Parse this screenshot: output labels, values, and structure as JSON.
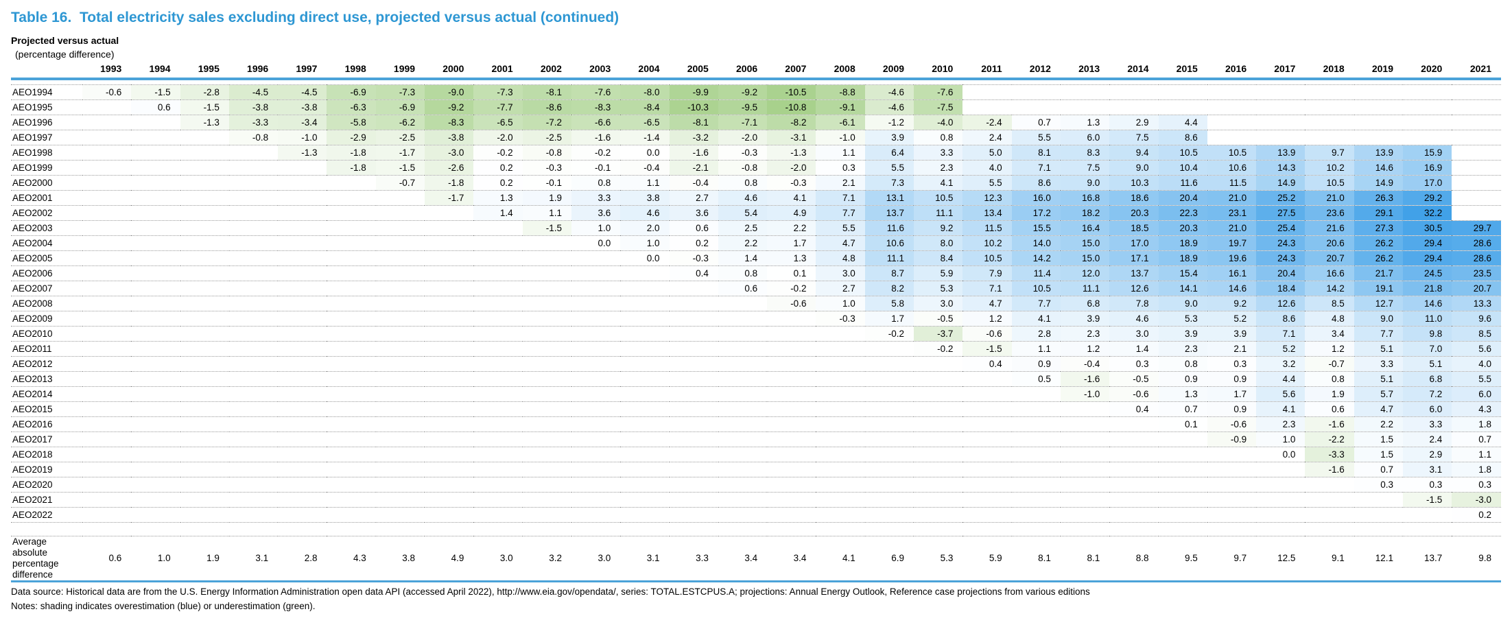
{
  "page": {
    "title": "Table 16.  Total electricity sales excluding direct use, projected versus actual (continued)",
    "subtitle": "Projected versus actual",
    "subtitle_unit": "(percentage difference)"
  },
  "table": {
    "columns": [
      "1993",
      "1994",
      "1995",
      "1996",
      "1997",
      "1998",
      "1999",
      "2000",
      "2001",
      "2002",
      "2003",
      "2004",
      "2005",
      "2006",
      "2007",
      "2008",
      "2009",
      "2010",
      "2011",
      "2012",
      "2013",
      "2014",
      "2015",
      "2016",
      "2017",
      "2018",
      "2019",
      "2020",
      "2021"
    ],
    "first_column_year": 1993,
    "rows": [
      {
        "label": "AEO1994",
        "start_year": 1993,
        "values": [
          -0.6,
          -1.5,
          -2.8,
          -4.5,
          -4.5,
          -6.9,
          -7.3,
          -9.0,
          -7.3,
          -8.1,
          -7.6,
          -8.0,
          -9.9,
          -9.2,
          -10.5,
          -8.8,
          -4.6,
          -7.6
        ]
      },
      {
        "label": "AEO1995",
        "start_year": 1994,
        "values": [
          0.6,
          -1.5,
          -3.8,
          -3.8,
          -6.3,
          -6.9,
          -9.2,
          -7.7,
          -8.6,
          -8.3,
          -8.4,
          -10.3,
          -9.5,
          -10.8,
          -9.1,
          -4.6,
          -7.5
        ]
      },
      {
        "label": "AEO1996",
        "start_year": 1995,
        "values": [
          -1.3,
          -3.3,
          -3.4,
          -5.8,
          -6.2,
          -8.3,
          -6.5,
          -7.2,
          -6.6,
          -6.5,
          -8.1,
          -7.1,
          -8.2,
          -6.1,
          -1.2,
          -4.0,
          -2.4,
          0.7,
          1.3,
          2.9,
          4.4
        ]
      },
      {
        "label": "AEO1997",
        "start_year": 1996,
        "values": [
          -0.8,
          -1.0,
          -2.9,
          -2.5,
          -3.8,
          -2.0,
          -2.5,
          -1.6,
          -1.4,
          -3.2,
          -2.0,
          -3.1,
          -1.0,
          3.9,
          0.8,
          2.4,
          5.5,
          6.0,
          7.5,
          8.6
        ]
      },
      {
        "label": "AEO1998",
        "start_year": 1997,
        "values": [
          -1.3,
          -1.8,
          -1.7,
          -3.0,
          -0.2,
          -0.8,
          -0.2,
          0.0,
          -1.6,
          -0.3,
          -1.3,
          1.1,
          6.4,
          3.3,
          5.0,
          8.1,
          8.3,
          9.4,
          10.5,
          10.5,
          13.9,
          9.7,
          13.9,
          15.9
        ]
      },
      {
        "label": "AEO1999",
        "start_year": 1998,
        "values": [
          -1.8,
          -1.5,
          -2.6,
          0.2,
          -0.3,
          -0.1,
          -0.4,
          -2.1,
          -0.8,
          -2.0,
          0.3,
          5.5,
          2.3,
          4.0,
          7.1,
          7.5,
          9.0,
          10.4,
          10.6,
          14.3,
          10.2,
          14.6,
          16.9
        ]
      },
      {
        "label": "AEO2000",
        "start_year": 1999,
        "values": [
          -0.7,
          -1.8,
          0.2,
          -0.1,
          0.8,
          1.1,
          -0.4,
          0.8,
          -0.3,
          2.1,
          7.3,
          4.1,
          5.5,
          8.6,
          9.0,
          10.3,
          11.6,
          11.5,
          14.9,
          10.5,
          14.9,
          17.0
        ]
      },
      {
        "label": "AEO2001",
        "start_year": 2000,
        "values": [
          -1.7,
          1.3,
          1.9,
          3.3,
          3.8,
          2.7,
          4.6,
          4.1,
          7.1,
          13.1,
          10.5,
          12.3,
          16.0,
          16.8,
          18.6,
          20.4,
          21.0,
          25.2,
          21.0,
          26.3,
          29.2
        ]
      },
      {
        "label": "AEO2002",
        "start_year": 2001,
        "values": [
          1.4,
          1.1,
          3.6,
          4.6,
          3.6,
          5.4,
          4.9,
          7.7,
          13.7,
          11.1,
          13.4,
          17.2,
          18.2,
          20.3,
          22.3,
          23.1,
          27.5,
          23.6,
          29.1,
          32.2
        ]
      },
      {
        "label": "AEO2003",
        "start_year": 2002,
        "values": [
          -1.5,
          1.0,
          2.0,
          0.6,
          2.5,
          2.2,
          5.5,
          11.6,
          9.2,
          11.5,
          15.5,
          16.4,
          18.5,
          20.3,
          21.0,
          25.4,
          21.6,
          27.3,
          30.5,
          29.7
        ]
      },
      {
        "label": "AEO2004",
        "start_year": 2003,
        "values": [
          0.0,
          1.0,
          0.2,
          2.2,
          1.7,
          4.7,
          10.6,
          8.0,
          10.2,
          14.0,
          15.0,
          17.0,
          18.9,
          19.7,
          24.3,
          20.6,
          26.2,
          29.4,
          28.6
        ]
      },
      {
        "label": "AEO2005",
        "start_year": 2004,
        "values": [
          0.0,
          -0.3,
          1.4,
          1.3,
          4.8,
          11.1,
          8.4,
          10.5,
          14.2,
          15.0,
          17.1,
          18.9,
          19.6,
          24.3,
          20.7,
          26.2,
          29.4,
          28.6
        ]
      },
      {
        "label": "AEO2006",
        "start_year": 2005,
        "values": [
          0.4,
          0.8,
          0.1,
          3.0,
          8.7,
          5.9,
          7.9,
          11.4,
          12.0,
          13.7,
          15.4,
          16.1,
          20.4,
          16.6,
          21.7,
          24.5,
          23.5
        ]
      },
      {
        "label": "AEO2007",
        "start_year": 2006,
        "values": [
          0.6,
          -0.2,
          2.7,
          8.2,
          5.3,
          7.1,
          10.5,
          11.1,
          12.6,
          14.1,
          14.6,
          18.4,
          14.2,
          19.1,
          21.8,
          20.7
        ]
      },
      {
        "label": "AEO2008",
        "start_year": 2007,
        "values": [
          -0.6,
          1.0,
          5.8,
          3.0,
          4.7,
          7.7,
          6.8,
          7.8,
          9.0,
          9.2,
          12.6,
          8.5,
          12.7,
          14.6,
          13.3
        ]
      },
      {
        "label": "AEO2009",
        "start_year": 2008,
        "values": [
          -0.3,
          1.7,
          -0.5,
          1.2,
          4.1,
          3.9,
          4.6,
          5.3,
          5.2,
          8.6,
          4.8,
          9.0,
          11.0,
          9.6
        ]
      },
      {
        "label": "AEO2010",
        "start_year": 2009,
        "values": [
          -0.2,
          -3.7,
          -0.6,
          2.8,
          2.3,
          3.0,
          3.9,
          3.9,
          7.1,
          3.4,
          7.7,
          9.8,
          8.5
        ]
      },
      {
        "label": "AEO2011",
        "start_year": 2010,
        "values": [
          -0.2,
          -1.5,
          1.1,
          1.2,
          1.4,
          2.3,
          2.1,
          5.2,
          1.2,
          5.1,
          7.0,
          5.6
        ]
      },
      {
        "label": "AEO2012",
        "start_year": 2011,
        "values": [
          0.4,
          0.9,
          -0.4,
          0.3,
          0.8,
          0.3,
          3.2,
          -0.7,
          3.3,
          5.1,
          4.0
        ]
      },
      {
        "label": "AEO2013",
        "start_year": 2012,
        "values": [
          0.5,
          -1.6,
          -0.5,
          0.9,
          0.9,
          4.4,
          0.8,
          5.1,
          6.8,
          5.5
        ]
      },
      {
        "label": "AEO2014",
        "start_year": 2013,
        "values": [
          -1.0,
          -0.6,
          1.3,
          1.7,
          5.6,
          1.9,
          5.7,
          7.2,
          6.0
        ]
      },
      {
        "label": "AEO2015",
        "start_year": 2014,
        "values": [
          0.4,
          0.7,
          0.9,
          4.1,
          0.6,
          4.7,
          6.0,
          4.3
        ]
      },
      {
        "label": "AEO2016",
        "start_year": 2015,
        "values": [
          0.1,
          -0.6,
          2.3,
          -1.6,
          2.2,
          3.3,
          1.8
        ]
      },
      {
        "label": "AEO2017",
        "start_year": 2016,
        "values": [
          -0.9,
          1.0,
          -2.2,
          1.5,
          2.4,
          0.7
        ]
      },
      {
        "label": "AEO2018",
        "start_year": 2017,
        "values": [
          0.0,
          -3.3,
          1.5,
          2.9,
          1.1
        ]
      },
      {
        "label": "AEO2019",
        "start_year": 2018,
        "values": [
          -1.6,
          0.7,
          3.1,
          1.8
        ]
      },
      {
        "label": "AEO2020",
        "start_year": 2019,
        "values": [
          0.3,
          0.3,
          0.3
        ]
      },
      {
        "label": "AEO2021",
        "start_year": 2020,
        "values": [
          -1.5,
          -3.0
        ]
      },
      {
        "label": "AEO2022",
        "start_year": 2021,
        "values": [
          0.2
        ]
      }
    ],
    "average_row": {
      "label": "Average absolute percentage difference",
      "values": [
        0.6,
        1.0,
        1.9,
        3.1,
        2.8,
        4.3,
        3.8,
        4.9,
        3.0,
        3.2,
        3.0,
        3.1,
        3.3,
        3.4,
        3.4,
        4.1,
        6.9,
        5.3,
        5.9,
        8.1,
        8.1,
        8.8,
        9.5,
        9.7,
        12.5,
        9.1,
        12.1,
        13.7,
        9.8
      ]
    }
  },
  "footer": {
    "data_source": "Data source: Historical data are from the U.S. Energy Information Administration open data API (accessed April 2022), http://www.eia.gov/opendata/, series: TOTAL.ESTCPUS.A; projections: Annual Energy Outlook, Reference case projections from various editions",
    "notes": "Notes: shading indicates overestimation (blue) or underestimation (green)."
  },
  "colors": {
    "title_blue": "#2e97d3",
    "rule_blue": "#4ba3d9",
    "overestimation_blue_max": "#41a1e8",
    "underestimation_green_max": "#a6d08a"
  },
  "shading": {
    "green_scale_max": 11.0,
    "blue_scale_max": 32.2
  }
}
